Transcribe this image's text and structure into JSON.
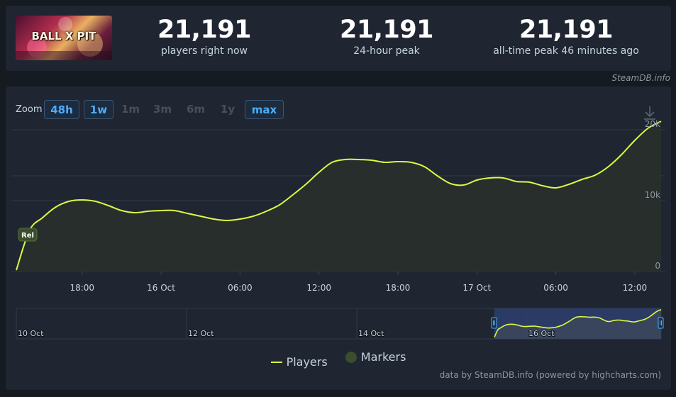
{
  "game": {
    "cover_title": "BALL X PIT"
  },
  "stats": [
    {
      "value": "21,191",
      "label": "players right now"
    },
    {
      "value": "21,191",
      "label": "24-hour peak"
    },
    {
      "value": "21,191",
      "label": "all-time peak 46 minutes ago"
    }
  ],
  "site_credit": "SteamDB.info",
  "zoom": {
    "label": "Zoom",
    "buttons": [
      {
        "label": "48h",
        "active": true
      },
      {
        "label": "1w",
        "active": true
      },
      {
        "label": "1m",
        "active": false
      },
      {
        "label": "3m",
        "active": false
      },
      {
        "label": "6m",
        "active": false
      },
      {
        "label": "1y",
        "active": false
      },
      {
        "label": "max",
        "active": true
      }
    ]
  },
  "icons": {
    "download": "download-icon"
  },
  "legend": {
    "players": "Players",
    "markers": "Markers"
  },
  "footer_credit": "data by SteamDB.info (powered by highcharts.com)",
  "colors": {
    "line": "#dcfa41",
    "accent": "#4aaeff",
    "background": "#1f2631",
    "marker": "#3b4d2e"
  },
  "chart_data": {
    "type": "area",
    "title": "",
    "xlabel": "",
    "ylabel": "",
    "ylim": [
      0,
      20000
    ],
    "y_ticks": [
      "0",
      "10k",
      "20k"
    ],
    "x_ticks": [
      "18:00",
      "16 Oct",
      "06:00",
      "12:00",
      "18:00",
      "17 Oct",
      "06:00",
      "12:00"
    ],
    "navigator_ticks": [
      "10 Oct",
      "12 Oct",
      "14 Oct",
      "16 Oct"
    ],
    "marker": {
      "label": "Rel",
      "x": "15 Oct 13:00"
    },
    "series": [
      {
        "name": "Players",
        "x": [
          "15 Oct 13:00",
          "15 Oct 14:00",
          "15 Oct 15:00",
          "15 Oct 16:00",
          "15 Oct 17:00",
          "15 Oct 18:00",
          "15 Oct 19:00",
          "15 Oct 20:00",
          "15 Oct 21:00",
          "15 Oct 22:00",
          "15 Oct 23:00",
          "16 Oct 00:00",
          "16 Oct 01:00",
          "16 Oct 02:00",
          "16 Oct 03:00",
          "16 Oct 04:00",
          "16 Oct 05:00",
          "16 Oct 06:00",
          "16 Oct 07:00",
          "16 Oct 08:00",
          "16 Oct 09:00",
          "16 Oct 10:00",
          "16 Oct 11:00",
          "16 Oct 12:00",
          "16 Oct 13:00",
          "16 Oct 14:00",
          "16 Oct 15:00",
          "16 Oct 16:00",
          "16 Oct 17:00",
          "16 Oct 18:00",
          "16 Oct 19:00",
          "16 Oct 20:00",
          "16 Oct 21:00",
          "16 Oct 22:00",
          "16 Oct 23:00",
          "17 Oct 00:00",
          "17 Oct 01:00",
          "17 Oct 02:00",
          "17 Oct 03:00",
          "17 Oct 04:00",
          "17 Oct 05:00",
          "17 Oct 06:00",
          "17 Oct 07:00",
          "17 Oct 08:00",
          "17 Oct 09:00",
          "17 Oct 10:00",
          "17 Oct 11:00",
          "17 Oct 12:00",
          "17 Oct 13:00",
          "17 Oct 14:00"
        ],
        "y": [
          200,
          5800,
          7600,
          9100,
          9900,
          10100,
          9900,
          9300,
          8600,
          8300,
          8500,
          8600,
          8600,
          8200,
          7800,
          7400,
          7200,
          7400,
          7800,
          8500,
          9400,
          10800,
          12300,
          14000,
          15400,
          15800,
          15800,
          15700,
          15400,
          15500,
          15400,
          14800,
          13500,
          12400,
          12200,
          12900,
          13200,
          13200,
          12700,
          12600,
          12100,
          11800,
          12300,
          13000,
          13600,
          14800,
          16500,
          18500,
          20200,
          21191
        ]
      }
    ],
    "grid": true,
    "legend_position": "bottom-center"
  }
}
